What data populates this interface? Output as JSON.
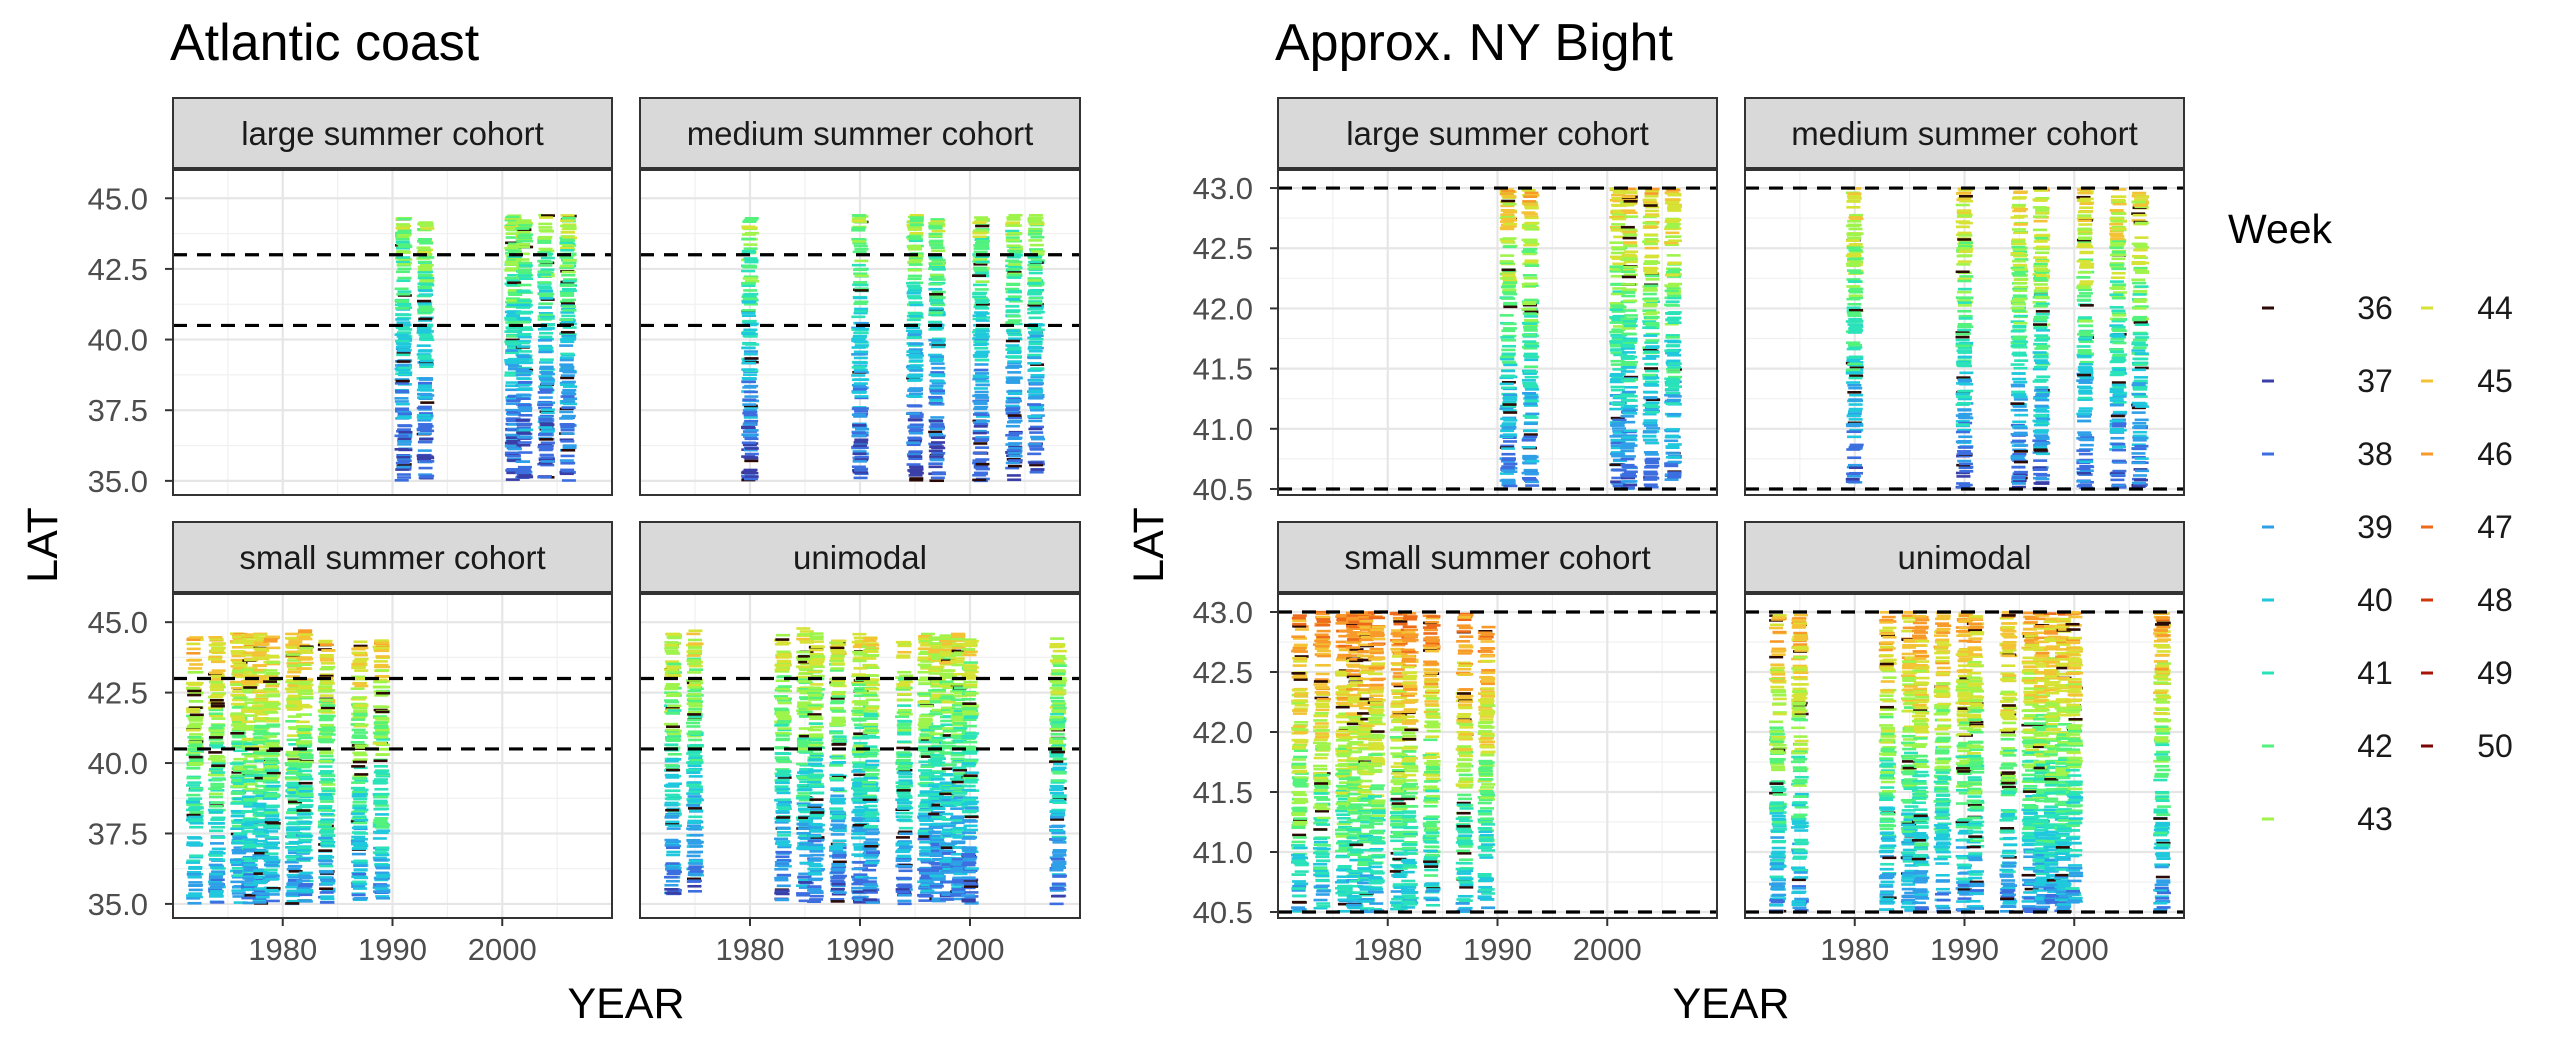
{
  "chart_data": {
    "type": "scatter",
    "x_key": "YEAR",
    "y_key": "LAT",
    "color_key": "Week",
    "legend": {
      "title": "Week",
      "position": "right",
      "entries": [
        {
          "label": "36",
          "color": "#2b0a05"
        },
        {
          "label": "37",
          "color": "#3a3fa8"
        },
        {
          "label": "38",
          "color": "#3c6ee0"
        },
        {
          "label": "39",
          "color": "#2f9fe8"
        },
        {
          "label": "40",
          "color": "#1fc8dd"
        },
        {
          "label": "41",
          "color": "#2ae3b8"
        },
        {
          "label": "42",
          "color": "#52f27c"
        },
        {
          "label": "43",
          "color": "#9ef44a"
        },
        {
          "label": "44",
          "color": "#d6e334"
        },
        {
          "label": "45",
          "color": "#f4c235"
        },
        {
          "label": "46",
          "color": "#f89a2a"
        },
        {
          "label": "47",
          "color": "#ee6a1b"
        },
        {
          "label": "48",
          "color": "#d23a0e"
        },
        {
          "label": "49",
          "color": "#a71405"
        },
        {
          "label": "50",
          "color": "#7a0403"
        }
      ]
    },
    "groups": [
      {
        "title": "Atlantic coast",
        "xlabel": "YEAR",
        "ylabel": "LAT",
        "xlim": [
          1970,
          2010
        ],
        "ylim": [
          34.5,
          46.0
        ],
        "xticks": [
          1980,
          1990,
          2000
        ],
        "yticks": [
          35.0,
          37.5,
          40.0,
          42.5,
          45.0
        ],
        "ytick_labels": [
          "35.0",
          "37.5",
          "40.0",
          "42.5",
          "45.0"
        ],
        "reference_lines": [
          40.5,
          43.0
        ],
        "facets": [
          {
            "strip": "large summer cohort",
            "columns": [
              {
                "year": 1991,
                "lat_min": 35.0,
                "lat_max": 44.3
              },
              {
                "year": 1993,
                "lat_min": 35.0,
                "lat_max": 44.2
              },
              {
                "year": 2001,
                "lat_min": 35.0,
                "lat_max": 44.4
              },
              {
                "year": 2002,
                "lat_min": 35.0,
                "lat_max": 44.3
              },
              {
                "year": 2004,
                "lat_min": 35.0,
                "lat_max": 44.4
              },
              {
                "year": 2006,
                "lat_min": 35.0,
                "lat_max": 44.4
              }
            ]
          },
          {
            "strip": "medium summer cohort",
            "columns": [
              {
                "year": 1980,
                "lat_min": 35.0,
                "lat_max": 44.4
              },
              {
                "year": 1990,
                "lat_min": 35.0,
                "lat_max": 44.4
              },
              {
                "year": 1995,
                "lat_min": 35.0,
                "lat_max": 44.4
              },
              {
                "year": 1997,
                "lat_min": 35.0,
                "lat_max": 44.3
              },
              {
                "year": 2001,
                "lat_min": 35.0,
                "lat_max": 44.4
              },
              {
                "year": 2004,
                "lat_min": 35.0,
                "lat_max": 44.4
              },
              {
                "year": 2006,
                "lat_min": 35.0,
                "lat_max": 44.4
              }
            ]
          },
          {
            "strip": "small summer cohort",
            "columns": [
              {
                "year": 1972,
                "lat_min": 35.0,
                "lat_max": 44.6
              },
              {
                "year": 1974,
                "lat_min": 35.0,
                "lat_max": 44.6
              },
              {
                "year": 1976,
                "lat_min": 35.0,
                "lat_max": 44.6
              },
              {
                "year": 1977,
                "lat_min": 35.0,
                "lat_max": 44.6
              },
              {
                "year": 1978,
                "lat_min": 35.0,
                "lat_max": 44.6
              },
              {
                "year": 1979,
                "lat_min": 35.0,
                "lat_max": 44.6
              },
              {
                "year": 1981,
                "lat_min": 35.0,
                "lat_max": 44.6
              },
              {
                "year": 1982,
                "lat_min": 35.0,
                "lat_max": 44.8
              },
              {
                "year": 1984,
                "lat_min": 35.0,
                "lat_max": 44.4
              },
              {
                "year": 1987,
                "lat_min": 35.0,
                "lat_max": 44.4
              },
              {
                "year": 1989,
                "lat_min": 35.0,
                "lat_max": 44.4
              }
            ]
          },
          {
            "strip": "unimodal",
            "columns": [
              {
                "year": 1973,
                "lat_min": 35.2,
                "lat_max": 44.6
              },
              {
                "year": 1975,
                "lat_min": 35.2,
                "lat_max": 44.7
              },
              {
                "year": 1983,
                "lat_min": 35.0,
                "lat_max": 44.6
              },
              {
                "year": 1985,
                "lat_min": 35.0,
                "lat_max": 44.8
              },
              {
                "year": 1986,
                "lat_min": 35.0,
                "lat_max": 44.6
              },
              {
                "year": 1988,
                "lat_min": 35.0,
                "lat_max": 44.4
              },
              {
                "year": 1990,
                "lat_min": 35.0,
                "lat_max": 44.6
              },
              {
                "year": 1991,
                "lat_min": 35.0,
                "lat_max": 44.5
              },
              {
                "year": 1994,
                "lat_min": 35.0,
                "lat_max": 44.4
              },
              {
                "year": 1996,
                "lat_min": 35.0,
                "lat_max": 44.6
              },
              {
                "year": 1997,
                "lat_min": 35.0,
                "lat_max": 44.5
              },
              {
                "year": 1998,
                "lat_min": 35.0,
                "lat_max": 44.6
              },
              {
                "year": 1999,
                "lat_min": 35.0,
                "lat_max": 44.6
              },
              {
                "year": 2000,
                "lat_min": 35.0,
                "lat_max": 44.4
              },
              {
                "year": 2008,
                "lat_min": 35.0,
                "lat_max": 44.5
              }
            ]
          }
        ]
      },
      {
        "title": "Approx. NY Bight",
        "xlabel": "YEAR",
        "ylabel": "LAT",
        "xlim": [
          1970,
          2010
        ],
        "ylim": [
          40.45,
          43.15
        ],
        "xticks": [
          1980,
          1990,
          2000
        ],
        "yticks": [
          40.5,
          41.0,
          41.5,
          42.0,
          42.5,
          43.0
        ],
        "ytick_labels": [
          "40.5",
          "41.0",
          "41.5",
          "42.0",
          "42.5",
          "43.0"
        ],
        "reference_lines": [
          40.5,
          43.0
        ],
        "facets": [
          {
            "strip": "large summer cohort",
            "columns": [
              {
                "year": 1991,
                "lat_min": 40.5,
                "lat_max": 43.0
              },
              {
                "year": 1993,
                "lat_min": 40.5,
                "lat_max": 43.0
              },
              {
                "year": 2001,
                "lat_min": 40.5,
                "lat_max": 43.0
              },
              {
                "year": 2002,
                "lat_min": 40.5,
                "lat_max": 43.0
              },
              {
                "year": 2004,
                "lat_min": 40.5,
                "lat_max": 43.0
              },
              {
                "year": 2006,
                "lat_min": 40.5,
                "lat_max": 43.0
              }
            ]
          },
          {
            "strip": "medium summer cohort",
            "columns": [
              {
                "year": 1980,
                "lat_min": 40.5,
                "lat_max": 43.0
              },
              {
                "year": 1990,
                "lat_min": 40.5,
                "lat_max": 43.0
              },
              {
                "year": 1995,
                "lat_min": 40.5,
                "lat_max": 43.0
              },
              {
                "year": 1997,
                "lat_min": 40.5,
                "lat_max": 43.0
              },
              {
                "year": 2001,
                "lat_min": 40.5,
                "lat_max": 43.0
              },
              {
                "year": 2004,
                "lat_min": 40.5,
                "lat_max": 43.0
              },
              {
                "year": 2006,
                "lat_min": 40.5,
                "lat_max": 43.0
              }
            ]
          },
          {
            "strip": "small summer cohort",
            "columns": [
              {
                "year": 1972,
                "lat_min": 40.5,
                "lat_max": 43.0
              },
              {
                "year": 1974,
                "lat_min": 40.5,
                "lat_max": 43.0
              },
              {
                "year": 1976,
                "lat_min": 40.5,
                "lat_max": 43.0
              },
              {
                "year": 1977,
                "lat_min": 40.5,
                "lat_max": 43.0
              },
              {
                "year": 1978,
                "lat_min": 40.5,
                "lat_max": 43.0
              },
              {
                "year": 1979,
                "lat_min": 40.5,
                "lat_max": 43.0
              },
              {
                "year": 1981,
                "lat_min": 40.5,
                "lat_max": 43.0
              },
              {
                "year": 1982,
                "lat_min": 40.5,
                "lat_max": 43.0
              },
              {
                "year": 1984,
                "lat_min": 40.5,
                "lat_max": 43.0
              },
              {
                "year": 1987,
                "lat_min": 40.5,
                "lat_max": 43.0
              },
              {
                "year": 1989,
                "lat_min": 40.5,
                "lat_max": 42.9
              }
            ]
          },
          {
            "strip": "unimodal",
            "columns": [
              {
                "year": 1973,
                "lat_min": 40.5,
                "lat_max": 43.0
              },
              {
                "year": 1975,
                "lat_min": 40.5,
                "lat_max": 43.0
              },
              {
                "year": 1983,
                "lat_min": 40.5,
                "lat_max": 43.0
              },
              {
                "year": 1985,
                "lat_min": 40.5,
                "lat_max": 43.0
              },
              {
                "year": 1986,
                "lat_min": 40.5,
                "lat_max": 43.0
              },
              {
                "year": 1988,
                "lat_min": 40.5,
                "lat_max": 43.0
              },
              {
                "year": 1990,
                "lat_min": 40.5,
                "lat_max": 43.0
              },
              {
                "year": 1991,
                "lat_min": 40.5,
                "lat_max": 43.0
              },
              {
                "year": 1994,
                "lat_min": 40.5,
                "lat_max": 43.0
              },
              {
                "year": 1996,
                "lat_min": 40.5,
                "lat_max": 43.0
              },
              {
                "year": 1997,
                "lat_min": 40.5,
                "lat_max": 43.0
              },
              {
                "year": 1998,
                "lat_min": 40.5,
                "lat_max": 43.0
              },
              {
                "year": 1999,
                "lat_min": 40.5,
                "lat_max": 43.0
              },
              {
                "year": 2000,
                "lat_min": 40.5,
                "lat_max": 43.0
              },
              {
                "year": 2008,
                "lat_min": 40.5,
                "lat_max": 43.0
              }
            ]
          }
        ]
      }
    ]
  }
}
